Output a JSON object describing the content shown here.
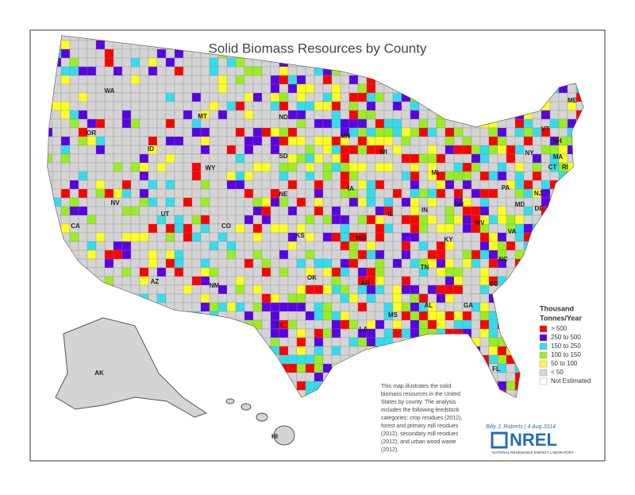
{
  "header": {
    "title": "Solid Biomass Resources by County"
  },
  "state_labels": [
    "WA",
    "OR",
    "CA",
    "ID",
    "NV",
    "MT",
    "WY",
    "UT",
    "AZ",
    "CO",
    "NM",
    "ND",
    "SD",
    "NE",
    "KS",
    "OK",
    "TX",
    "MN",
    "IA",
    "MO",
    "AR",
    "LA",
    "WI",
    "IL",
    "MS",
    "MI",
    "IN",
    "KY",
    "TN",
    "AL",
    "OH",
    "GA",
    "FL",
    "SC",
    "NC",
    "VA",
    "WV",
    "PA",
    "NY",
    "VT",
    "NH",
    "ME",
    "MA",
    "CT",
    "RI",
    "NJ",
    "MD",
    "DE",
    "AK",
    "HI"
  ],
  "legend": {
    "title": [
      "Thousand",
      "Tonnes/Year"
    ],
    "entries": [
      {
        "label": "> 500",
        "color": "#ff0000"
      },
      {
        "label": "250 to 500",
        "color": "#5a00e6"
      },
      {
        "label": "150 to 250",
        "color": "#33ddee"
      },
      {
        "label": "100 to 150",
        "color": "#99ee22"
      },
      {
        "label": "50 to 100",
        "color": "#ffff22"
      },
      {
        "label": "< 50",
        "color": "#d4d4d4"
      },
      {
        "label": "Not Estimated",
        "color": "#ffffff"
      }
    ]
  },
  "description": [
    "This map illustrates the solid",
    "biomass resources in the United",
    "States by county. The analysis",
    "includes the following feedstock",
    "categories: crop residues (2012),",
    "forest and primary mill residues",
    "(2012), secondary mill residues",
    "(2012), and urban wood waste",
    "(2012)."
  ],
  "credit": "Billy J. Roberts | 4 Aug 2014",
  "logo": {
    "name": "NREL",
    "subtitle": "NATIONAL RENEWABLE ENERGY LABORATORY"
  }
}
